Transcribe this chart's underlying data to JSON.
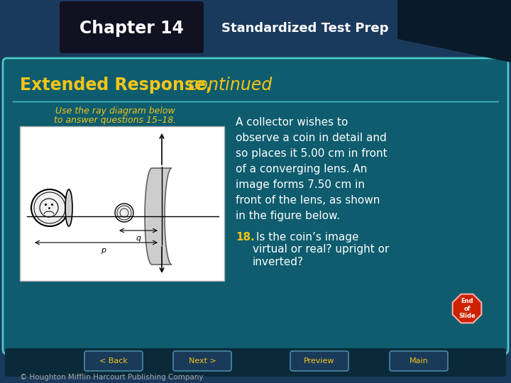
{
  "title_chapter": "Chapter 14",
  "title_section": "Standardized Test Prep",
  "heading_bold": "Extended Response,",
  "heading_italic": " continued",
  "diagram_caption_line1": "Use the ray diagram below",
  "diagram_caption_line2": "to answer questions 15–18.",
  "body_text_1_line1": "A collector wishes to",
  "body_text_1_line2": "observe a coin in detail and",
  "body_text_1_line3": "so places it 5.00 cm in front",
  "body_text_1_line4": "of a converging lens. An",
  "body_text_1_line5": "image forms 7.50 cm in",
  "body_text_1_line6": "front of the lens, as shown",
  "body_text_1_line7": "in the figure below.",
  "body_text_2_bold": "18.",
  "body_text_2": " Is the coin’s image\nvirtual or real? upright or\ninverted?",
  "footer": "© Houghton Mifflin Harcourt Publishing Company",
  "bg_outer": "#1a3a5c",
  "bg_main": "#0e5c6e",
  "bg_main_border": "#4cc8c8",
  "header_bg": "#111122",
  "header_text_color": "#ffffff",
  "section_title_color": "#f5c518",
  "body_text_color": "#ffffff",
  "diagram_bg": "#ffffff",
  "caption_color": "#f5c518",
  "nav_bg": "#0a2a3a",
  "nav_text": "#f5c518",
  "end_slide_color": "#cc2200",
  "nav_buttons": [
    "< Back",
    "Next >",
    "Preview",
    "Main"
  ]
}
